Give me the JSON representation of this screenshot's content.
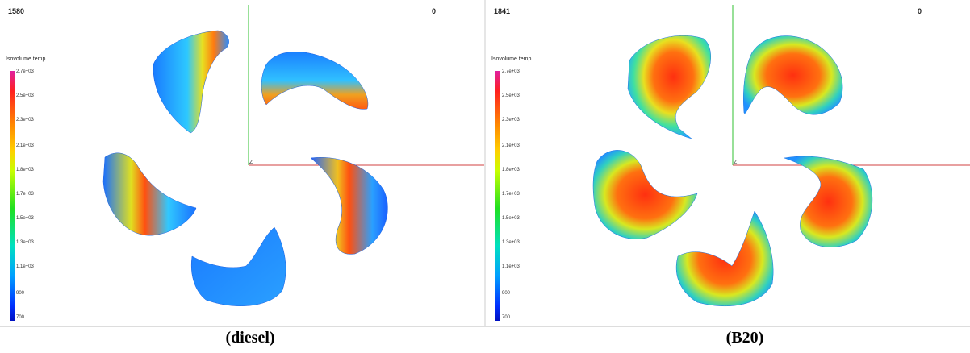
{
  "left_panel": {
    "frame_number": "1580",
    "corner_value": "0",
    "colorbar_title": "Isovolume temp",
    "ticks": [
      "2.7e+03",
      "2.5e+03",
      "2.3e+03",
      "2.1e+03",
      "1.8e+03",
      "1.7e+03",
      "1.5e+03",
      "1.3e+03",
      "1.1e+03",
      "900",
      "700"
    ],
    "axis_label": "Z",
    "caption": "(diesel)"
  },
  "right_panel": {
    "frame_number": "1841",
    "corner_value": "0",
    "colorbar_title": "Isovolume temp",
    "ticks": [
      "2.7e+03",
      "2.5e+03",
      "2.3e+03",
      "2.1e+03",
      "1.8e+03",
      "1.7e+03",
      "1.5e+03",
      "1.3e+03",
      "1.1e+03",
      "900",
      "700"
    ],
    "axis_label": "Z",
    "caption": "(B20)"
  },
  "colors": {
    "axis_green": "#30c030",
    "axis_red": "#d04040",
    "colorbar_top": "#e020a0",
    "colorbar_bottom": "#0010c0"
  }
}
